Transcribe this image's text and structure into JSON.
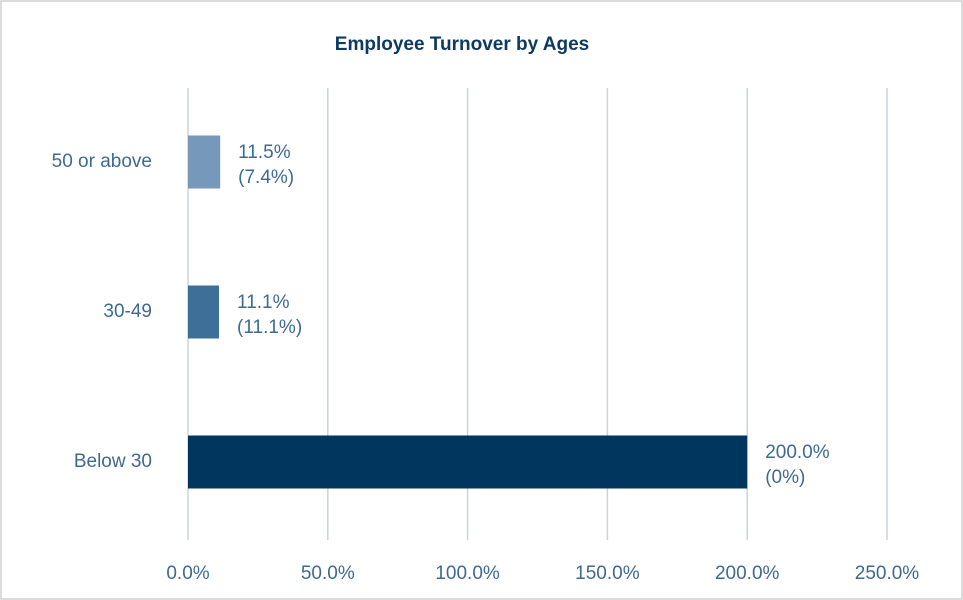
{
  "chart_data": {
    "type": "bar",
    "orientation": "horizontal",
    "title": "Employee Turnover by Ages",
    "categories": [
      "50 or above",
      "30-49",
      "Below 30"
    ],
    "values": [
      11.5,
      11.1,
      200
    ],
    "value_labels": [
      "11.5%",
      "11.1%",
      "200.0%"
    ],
    "value_sublabels": [
      "(7.4%)",
      "(11.1%)",
      "(0%)"
    ],
    "colors": [
      "#7698bb",
      "#3d6f98",
      "#01365f"
    ],
    "xlim": [
      0,
      250
    ],
    "xticks": [
      {
        "value": 0,
        "label": "0.0%"
      },
      {
        "value": 50,
        "label": "50.0%"
      },
      {
        "value": 100,
        "label": "100.0%"
      },
      {
        "value": 150,
        "label": "150.0%"
      },
      {
        "value": 200,
        "label": "200.0%"
      },
      {
        "value": 250,
        "label": "250.0%"
      }
    ],
    "grid": true
  }
}
